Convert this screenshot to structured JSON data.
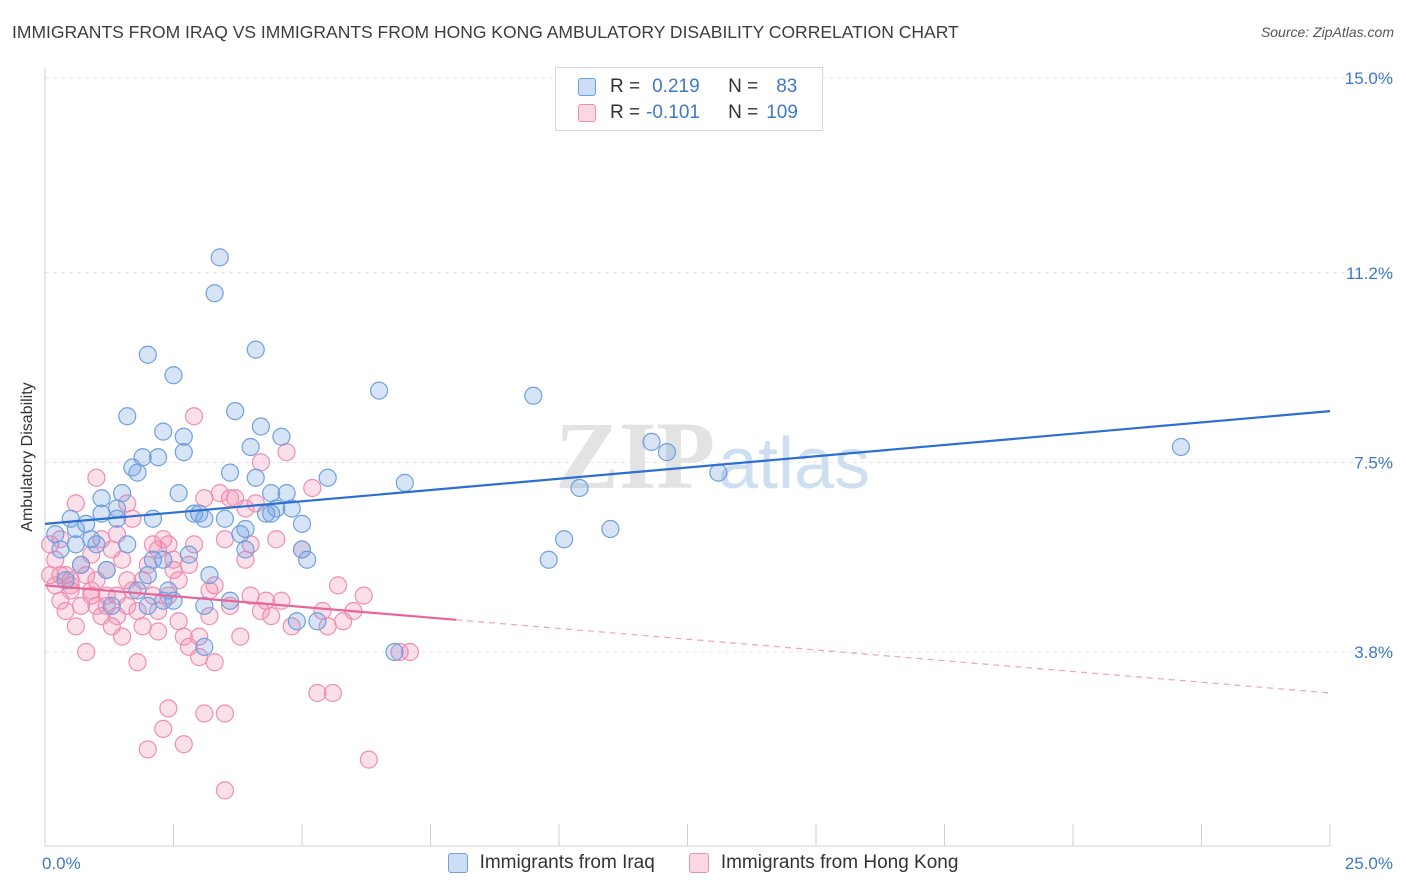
{
  "title": "IMMIGRANTS FROM IRAQ VS IMMIGRANTS FROM HONG KONG AMBULATORY DISABILITY CORRELATION CHART",
  "source": "Source: ZipAtlas.com",
  "watermark": {
    "zip": "ZIP",
    "atlas": "atlas"
  },
  "legend": {
    "r_label": "R =",
    "n_label": "N =",
    "rows": [
      {
        "r": "0.219",
        "n": "83",
        "color": "#6e9fe0"
      },
      {
        "r": "-0.101",
        "n": "109",
        "color": "#f08db0"
      }
    ]
  },
  "bottom_legend": [
    {
      "label": "Immigrants from Iraq",
      "color": "#6e9fe0"
    },
    {
      "label": "Immigrants from Hong Kong",
      "color": "#f08db0"
    }
  ],
  "chart_data": {
    "type": "scatter",
    "title": "IMMIGRANTS FROM IRAQ VS IMMIGRANTS FROM HONG KONG AMBULATORY DISABILITY CORRELATION CHART",
    "xlabel": "",
    "ylabel": "Ambulatory Disability",
    "xlim": [
      0,
      25
    ],
    "ylim": [
      0,
      15.5
    ],
    "x_tick_labels": [
      "0.0%",
      "25.0%"
    ],
    "y_ticks": [
      3.8,
      7.5,
      11.2,
      15.0
    ],
    "y_tick_labels": [
      "3.8%",
      "7.5%",
      "11.2%",
      "15.0%"
    ],
    "grid": true,
    "series": [
      {
        "name": "Immigrants from Iraq",
        "color": "#6e9fe0",
        "trend": {
          "x": [
            0,
            25
          ],
          "y": [
            6.3,
            8.5
          ],
          "dashed_from": null
        },
        "points": [
          [
            0.2,
            6.1
          ],
          [
            0.3,
            5.8
          ],
          [
            0.4,
            5.2
          ],
          [
            0.5,
            6.4
          ],
          [
            0.6,
            5.9
          ],
          [
            0.7,
            5.5
          ],
          [
            0.8,
            6.3
          ],
          [
            0.9,
            6.0
          ],
          [
            1.0,
            5.9
          ],
          [
            1.1,
            6.5
          ],
          [
            1.1,
            6.8
          ],
          [
            1.2,
            5.4
          ],
          [
            1.3,
            4.7
          ],
          [
            1.4,
            6.6
          ],
          [
            1.5,
            6.9
          ],
          [
            1.6,
            8.4
          ],
          [
            1.6,
            5.9
          ],
          [
            1.7,
            7.4
          ],
          [
            1.8,
            7.3
          ],
          [
            1.8,
            5.0
          ],
          [
            1.9,
            7.6
          ],
          [
            2.0,
            5.3
          ],
          [
            2.0,
            9.6
          ],
          [
            2.1,
            5.6
          ],
          [
            2.1,
            6.4
          ],
          [
            2.2,
            7.6
          ],
          [
            2.3,
            4.8
          ],
          [
            2.3,
            5.6
          ],
          [
            2.3,
            8.1
          ],
          [
            2.4,
            5.0
          ],
          [
            2.5,
            4.8
          ],
          [
            2.5,
            9.2
          ],
          [
            2.6,
            6.9
          ],
          [
            2.7,
            7.7
          ],
          [
            2.7,
            8.0
          ],
          [
            2.8,
            5.7
          ],
          [
            2.9,
            6.5
          ],
          [
            3.0,
            6.5
          ],
          [
            3.1,
            6.4
          ],
          [
            3.1,
            4.7
          ],
          [
            3.2,
            5.3
          ],
          [
            3.3,
            10.8
          ],
          [
            3.4,
            11.5
          ],
          [
            3.5,
            6.4
          ],
          [
            3.6,
            7.3
          ],
          [
            3.6,
            4.8
          ],
          [
            3.7,
            8.5
          ],
          [
            3.8,
            6.1
          ],
          [
            3.9,
            6.2
          ],
          [
            3.9,
            5.8
          ],
          [
            4.0,
            7.8
          ],
          [
            4.1,
            7.2
          ],
          [
            4.2,
            8.2
          ],
          [
            4.1,
            9.7
          ],
          [
            4.3,
            6.5
          ],
          [
            4.4,
            6.9
          ],
          [
            4.4,
            6.5
          ],
          [
            4.5,
            6.6
          ],
          [
            4.6,
            8.0
          ],
          [
            4.7,
            6.9
          ],
          [
            4.8,
            6.6
          ],
          [
            4.9,
            4.4
          ],
          [
            5.0,
            5.8
          ],
          [
            5.0,
            6.3
          ],
          [
            5.1,
            5.6
          ],
          [
            5.3,
            4.4
          ],
          [
            5.5,
            7.2
          ],
          [
            6.5,
            8.9
          ],
          [
            6.8,
            3.8
          ],
          [
            7.0,
            7.1
          ],
          [
            9.5,
            8.8
          ],
          [
            9.8,
            5.6
          ],
          [
            10.1,
            6.0
          ],
          [
            10.4,
            7.0
          ],
          [
            11.0,
            6.2
          ],
          [
            11.8,
            7.9
          ],
          [
            12.1,
            7.7
          ],
          [
            13.1,
            7.3
          ],
          [
            22.1,
            7.8
          ],
          [
            3.1,
            3.9
          ],
          [
            0.6,
            6.2
          ],
          [
            1.4,
            6.4
          ],
          [
            2.0,
            4.7
          ]
        ]
      },
      {
        "name": "Immigrants from Hong Kong",
        "color": "#f08db0",
        "trend": {
          "x": [
            0,
            25
          ],
          "y": [
            5.1,
            3.0
          ],
          "solid_to": 8.0
        },
        "points": [
          [
            0.1,
            5.9
          ],
          [
            0.1,
            5.3
          ],
          [
            0.2,
            5.6
          ],
          [
            0.2,
            5.1
          ],
          [
            0.3,
            4.8
          ],
          [
            0.3,
            6.0
          ],
          [
            0.4,
            5.3
          ],
          [
            0.4,
            4.6
          ],
          [
            0.5,
            5.0
          ],
          [
            0.5,
            5.2
          ],
          [
            0.6,
            6.7
          ],
          [
            0.6,
            4.3
          ],
          [
            0.7,
            5.5
          ],
          [
            0.7,
            4.7
          ],
          [
            0.8,
            3.8
          ],
          [
            0.8,
            5.3
          ],
          [
            0.9,
            4.9
          ],
          [
            0.9,
            5.7
          ],
          [
            1.0,
            4.7
          ],
          [
            1.0,
            5.2
          ],
          [
            1.0,
            7.2
          ],
          [
            1.1,
            4.5
          ],
          [
            1.1,
            6.0
          ],
          [
            1.2,
            4.9
          ],
          [
            1.2,
            5.4
          ],
          [
            1.3,
            4.3
          ],
          [
            1.3,
            5.8
          ],
          [
            1.4,
            4.9
          ],
          [
            1.4,
            6.1
          ],
          [
            1.5,
            5.6
          ],
          [
            1.5,
            4.1
          ],
          [
            1.6,
            4.7
          ],
          [
            1.6,
            5.2
          ],
          [
            1.7,
            5.0
          ],
          [
            1.7,
            6.4
          ],
          [
            1.8,
            4.6
          ],
          [
            1.8,
            3.6
          ],
          [
            1.9,
            5.2
          ],
          [
            1.9,
            4.3
          ],
          [
            2.0,
            5.5
          ],
          [
            2.0,
            1.9
          ],
          [
            2.1,
            4.9
          ],
          [
            2.1,
            5.9
          ],
          [
            2.2,
            4.6
          ],
          [
            2.2,
            5.8
          ],
          [
            2.3,
            2.3
          ],
          [
            2.3,
            6.0
          ],
          [
            2.4,
            2.7
          ],
          [
            2.4,
            4.9
          ],
          [
            2.5,
            5.4
          ],
          [
            2.5,
            5.6
          ],
          [
            2.6,
            4.4
          ],
          [
            2.6,
            5.2
          ],
          [
            2.7,
            4.1
          ],
          [
            2.7,
            2.0
          ],
          [
            2.8,
            3.9
          ],
          [
            2.8,
            5.5
          ],
          [
            2.9,
            8.4
          ],
          [
            2.9,
            5.9
          ],
          [
            3.0,
            4.1
          ],
          [
            3.0,
            3.7
          ],
          [
            3.1,
            2.6
          ],
          [
            3.1,
            6.8
          ],
          [
            3.2,
            5.0
          ],
          [
            3.2,
            4.5
          ],
          [
            3.3,
            5.1
          ],
          [
            3.3,
            3.6
          ],
          [
            3.4,
            6.9
          ],
          [
            3.5,
            2.6
          ],
          [
            3.5,
            6.0
          ],
          [
            3.6,
            6.8
          ],
          [
            3.6,
            4.7
          ],
          [
            3.7,
            6.8
          ],
          [
            3.8,
            4.1
          ],
          [
            3.9,
            5.6
          ],
          [
            4.0,
            4.9
          ],
          [
            4.0,
            5.9
          ],
          [
            4.1,
            6.7
          ],
          [
            4.2,
            7.5
          ],
          [
            4.2,
            4.6
          ],
          [
            4.3,
            4.8
          ],
          [
            4.4,
            4.5
          ],
          [
            4.5,
            6.0
          ],
          [
            4.6,
            4.8
          ],
          [
            4.7,
            7.7
          ],
          [
            4.8,
            4.3
          ],
          [
            5.0,
            5.8
          ],
          [
            5.2,
            7.0
          ],
          [
            5.3,
            3.0
          ],
          [
            5.4,
            4.6
          ],
          [
            5.5,
            4.3
          ],
          [
            5.6,
            3.0
          ],
          [
            5.7,
            5.1
          ],
          [
            5.8,
            4.4
          ],
          [
            6.0,
            4.6
          ],
          [
            6.2,
            4.9
          ],
          [
            6.3,
            1.7
          ],
          [
            6.9,
            3.8
          ],
          [
            7.1,
            3.8
          ],
          [
            3.5,
            1.1
          ],
          [
            0.9,
            5.0
          ],
          [
            2.4,
            5.9
          ],
          [
            1.4,
            4.5
          ],
          [
            0.5,
            5.1
          ],
          [
            2.2,
            4.2
          ],
          [
            1.6,
            6.7
          ],
          [
            0.3,
            5.3
          ],
          [
            3.9,
            6.6
          ],
          [
            1.2,
            4.7
          ]
        ]
      }
    ]
  }
}
